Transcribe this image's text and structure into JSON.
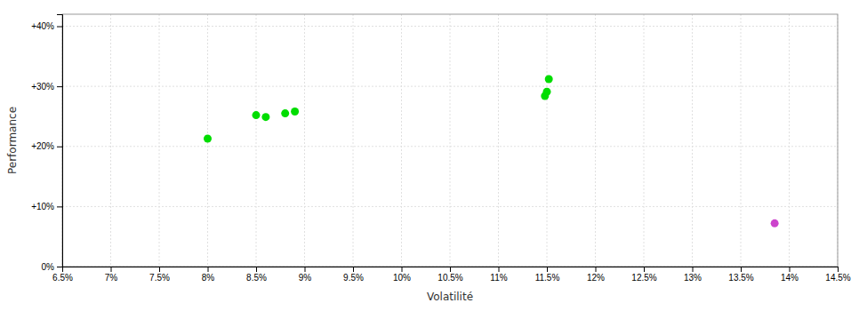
{
  "chart_data": {
    "type": "scatter",
    "xlabel": "Volatilité",
    "ylabel": "Performance",
    "xlim": [
      0.065,
      0.145
    ],
    "ylim": [
      0.0,
      0.42
    ],
    "xticks": [
      {
        "value": 0.065,
        "label": "6.5%"
      },
      {
        "value": 0.07,
        "label": "7%"
      },
      {
        "value": 0.075,
        "label": "7.5%"
      },
      {
        "value": 0.08,
        "label": "8%"
      },
      {
        "value": 0.085,
        "label": "8.5%"
      },
      {
        "value": 0.09,
        "label": "9%"
      },
      {
        "value": 0.095,
        "label": "9.5%"
      },
      {
        "value": 0.1,
        "label": "10%"
      },
      {
        "value": 0.105,
        "label": "10.5%"
      },
      {
        "value": 0.11,
        "label": "11%"
      },
      {
        "value": 0.115,
        "label": "11.5%"
      },
      {
        "value": 0.12,
        "label": "12%"
      },
      {
        "value": 0.125,
        "label": "12.5%"
      },
      {
        "value": 0.13,
        "label": "13%"
      },
      {
        "value": 0.135,
        "label": "13.5%"
      },
      {
        "value": 0.14,
        "label": "14%"
      },
      {
        "value": 0.145,
        "label": "14.5%"
      }
    ],
    "yticks": [
      {
        "value": 0.0,
        "label": "0%"
      },
      {
        "value": 0.1,
        "label": "+10%"
      },
      {
        "value": 0.2,
        "label": "+20%"
      },
      {
        "value": 0.3,
        "label": "+30%"
      },
      {
        "value": 0.4,
        "label": "+40%"
      }
    ],
    "grid": true,
    "series": [
      {
        "color": "#00dd00",
        "x": [
          0.08,
          0.085,
          0.086,
          0.088,
          0.089,
          0.1148,
          0.115,
          0.1152
        ],
        "values": [
          0.213,
          0.252,
          0.249,
          0.255,
          0.258,
          0.284,
          0.291,
          0.312
        ]
      },
      {
        "color": "#cc44cc",
        "x": [
          0.1385
        ],
        "values": [
          0.072
        ]
      }
    ]
  }
}
